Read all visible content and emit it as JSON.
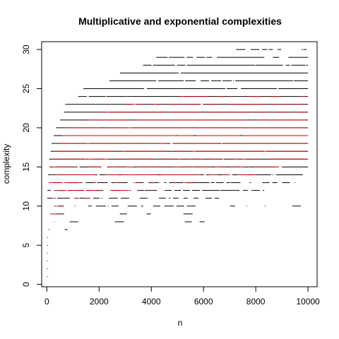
{
  "chart_data": {
    "type": "scatter",
    "title": "Multiplicative and exponential complexities",
    "xlabel": "n",
    "ylabel": "complexity",
    "xlim": [
      0,
      10000
    ],
    "ylim": [
      0,
      30
    ],
    "xticks": [
      0,
      2000,
      4000,
      6000,
      8000,
      10000
    ],
    "yticks": [
      0,
      5,
      10,
      15,
      20,
      25,
      30
    ],
    "grid": false,
    "legend": "none",
    "series": [
      {
        "label_hidden": true,
        "color": "#000000",
        "note_levels": "complexity levels with horizontal point bands",
        "bands": [
          {
            "y": 30,
            "x_start": 7000,
            "x_end": 10000,
            "density": 0.35
          },
          {
            "y": 29,
            "x_start": 4000,
            "x_end": 10000,
            "density": 0.5
          },
          {
            "y": 28,
            "x_start": 3600,
            "x_end": 10000,
            "density": 0.75
          },
          {
            "y": 27,
            "x_start": 2800,
            "x_end": 10000,
            "density": 0.85
          },
          {
            "y": 26,
            "x_start": 2400,
            "x_end": 10000,
            "density": 0.8
          },
          {
            "y": 25,
            "x_start": 1400,
            "x_end": 10000,
            "density": 0.9
          },
          {
            "y": 24,
            "x_start": 1200,
            "x_end": 10000,
            "density": 0.9
          },
          {
            "y": 23,
            "x_start": 700,
            "x_end": 10000,
            "density": 0.95
          },
          {
            "y": 22,
            "x_start": 650,
            "x_end": 10000,
            "density": 0.95
          },
          {
            "y": 21,
            "x_start": 500,
            "x_end": 10000,
            "density": 0.97
          },
          {
            "y": 20,
            "x_start": 350,
            "x_end": 10000,
            "density": 0.97
          },
          {
            "y": 19,
            "x_start": 260,
            "x_end": 10000,
            "density": 0.97
          },
          {
            "y": 18,
            "x_start": 180,
            "x_end": 10000,
            "density": 0.95
          },
          {
            "y": 17,
            "x_start": 140,
            "x_end": 10000,
            "density": 0.9
          },
          {
            "y": 16,
            "x_start": 90,
            "x_end": 10000,
            "density": 0.8
          },
          {
            "y": 15,
            "x_start": 60,
            "x_end": 10000,
            "density": 0.7
          },
          {
            "y": 14,
            "x_start": 40,
            "x_end": 9800,
            "density": 0.55
          },
          {
            "y": 13,
            "x_start": 30,
            "x_end": 9500,
            "density": 0.4
          },
          {
            "y": 12,
            "x_start": 20,
            "x_end": 9000,
            "density": 0.3
          },
          {
            "y": 11,
            "x_start": 15,
            "x_end": 6600,
            "density": 0.2
          },
          {
            "y": 10,
            "x_start": 10,
            "x_end": 10000,
            "density": 0.12
          },
          {
            "y": 9,
            "x_start": 8,
            "x_end": 6600,
            "density": 0.08
          },
          {
            "y": 8,
            "x_start": 6,
            "x_end": 6600,
            "density": 0.05
          },
          {
            "y": 7,
            "x_start": 5,
            "x_end": 800,
            "density": 0.05
          },
          {
            "y": 6,
            "x_start": 4,
            "x_end": 30,
            "density": 0.5
          },
          {
            "y": 5,
            "x_start": 3,
            "x_end": 20,
            "density": 0.5
          },
          {
            "y": 4,
            "x_start": 2,
            "x_end": 10,
            "density": 0.5
          },
          {
            "y": 3,
            "x_start": 1,
            "x_end": 5,
            "density": 0.5
          },
          {
            "y": 2,
            "x_start": 1,
            "x_end": 3,
            "density": 0.5
          },
          {
            "y": 1,
            "x_start": 1,
            "x_end": 1,
            "density": 1
          }
        ]
      },
      {
        "label_hidden": true,
        "color": "#cc0000",
        "bands": [
          {
            "y": 24,
            "x_start": 5000,
            "x_end": 10000,
            "density": 0.2
          },
          {
            "y": 23,
            "x_start": 3000,
            "x_end": 10000,
            "density": 0.4
          },
          {
            "y": 22,
            "x_start": 2000,
            "x_end": 10000,
            "density": 0.55
          },
          {
            "y": 21,
            "x_start": 1500,
            "x_end": 10000,
            "density": 0.7
          },
          {
            "y": 20,
            "x_start": 900,
            "x_end": 10000,
            "density": 0.75
          },
          {
            "y": 19,
            "x_start": 600,
            "x_end": 10000,
            "density": 0.8
          },
          {
            "y": 18,
            "x_start": 350,
            "x_end": 10000,
            "density": 0.8
          },
          {
            "y": 17,
            "x_start": 250,
            "x_end": 10000,
            "density": 0.75
          },
          {
            "y": 16,
            "x_start": 150,
            "x_end": 10000,
            "density": 0.65
          },
          {
            "y": 15,
            "x_start": 100,
            "x_end": 9000,
            "density": 0.5
          },
          {
            "y": 14,
            "x_start": 60,
            "x_end": 8000,
            "density": 0.4
          },
          {
            "y": 13,
            "x_start": 40,
            "x_end": 6000,
            "density": 0.3
          },
          {
            "y": 12,
            "x_start": 25,
            "x_end": 4000,
            "density": 0.2
          },
          {
            "y": 11,
            "x_start": 15,
            "x_end": 2500,
            "density": 0.15
          },
          {
            "y": 10,
            "x_start": 10,
            "x_end": 1500,
            "density": 0.1
          },
          {
            "y": 9,
            "x_start": 8,
            "x_end": 800,
            "density": 0.08
          },
          {
            "y": 8,
            "x_start": 6,
            "x_end": 300,
            "density": 0.15
          },
          {
            "y": 7,
            "x_start": 5,
            "x_end": 100,
            "density": 0.2
          },
          {
            "y": 6,
            "x_start": 4,
            "x_end": 20,
            "density": 0.4
          }
        ]
      }
    ]
  }
}
